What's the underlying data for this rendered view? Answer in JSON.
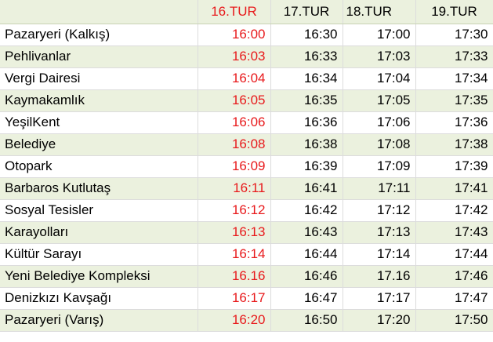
{
  "header": {
    "stop_col": "",
    "tours": [
      "16.TUR",
      "17.TUR",
      "18.TUR",
      "19.TUR"
    ]
  },
  "rows": [
    {
      "stop": "Pazaryeri (Kalkış)",
      "times": [
        "16:00",
        "16:30",
        "17:00",
        "17:30"
      ]
    },
    {
      "stop": "Pehlivanlar",
      "times": [
        "16:03",
        "16:33",
        "17:03",
        "17:33"
      ]
    },
    {
      "stop": "Vergi Dairesi",
      "times": [
        "16:04",
        "16:34",
        "17:04",
        "17:34"
      ]
    },
    {
      "stop": "Kaymakamlık",
      "times": [
        "16:05",
        "16:35",
        "17:05",
        "17:35"
      ]
    },
    {
      "stop": "YeşilKent",
      "times": [
        "16:06",
        "16:36",
        "17:06",
        "17:36"
      ]
    },
    {
      "stop": "Belediye",
      "times": [
        "16:08",
        "16:38",
        "17:08",
        "17:38"
      ]
    },
    {
      "stop": "Otopark",
      "times": [
        "16:09",
        "16:39",
        "17:09",
        "17:39"
      ]
    },
    {
      "stop": "Barbaros Kutlutaş",
      "times": [
        "16:11",
        "16:41",
        "17:11",
        "17:41"
      ]
    },
    {
      "stop": "Sosyal Tesisler",
      "times": [
        "16:12",
        "16:42",
        "17:12",
        "17:42"
      ]
    },
    {
      "stop": "Karayolları",
      "times": [
        "16:13",
        "16:43",
        "17:13",
        "17:43"
      ]
    },
    {
      "stop": "Kültür Sarayı",
      "times": [
        "16:14",
        "16:44",
        "17:14",
        "17:44"
      ]
    },
    {
      "stop": "Yeni Belediye Kompleksi",
      "times": [
        "16.16",
        "16:46",
        "17.16",
        "17:46"
      ]
    },
    {
      "stop": "Denizkızı Kavşağı",
      "times": [
        "16:17",
        "16:47",
        "17:17",
        "17:47"
      ]
    },
    {
      "stop": "Pazaryeri (Varış)",
      "times": [
        "16:20",
        "16:50",
        "17:20",
        "17:50"
      ]
    }
  ],
  "colors": {
    "highlight_text": "#e8191b",
    "alt_row_bg": "#ebf1de",
    "grid": "#dcdcdc"
  }
}
